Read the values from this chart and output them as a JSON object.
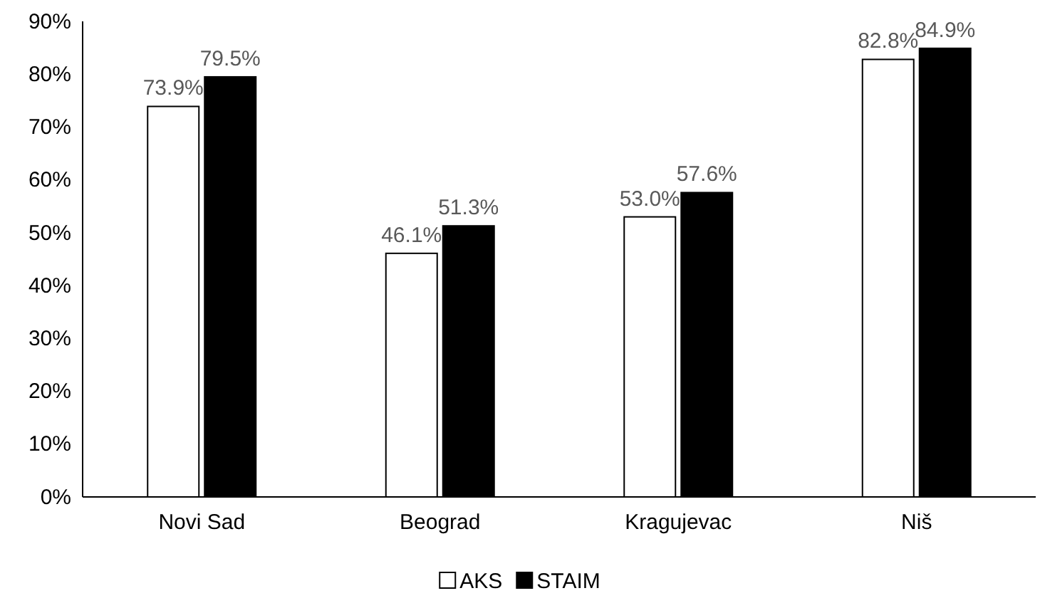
{
  "chart_data": {
    "type": "bar",
    "categories": [
      "Novi Sad",
      "Beograd",
      "Kragujevac",
      "Niš"
    ],
    "series": [
      {
        "name": "AKS",
        "color": "#ffffff",
        "values": [
          73.9,
          46.1,
          53.0,
          82.8
        ],
        "value_labels": [
          "73.9%",
          "46.1%",
          "53.0%",
          "82.8%"
        ]
      },
      {
        "name": "STAIM",
        "color": "#000000",
        "values": [
          79.5,
          51.3,
          57.6,
          84.9
        ],
        "value_labels": [
          "79.5%",
          "51.3%",
          "57.6%",
          "84.9%"
        ]
      }
    ],
    "ylim": [
      0,
      90
    ],
    "yticks": [
      {
        "value": 0,
        "label": "0%"
      },
      {
        "value": 10,
        "label": "10%"
      },
      {
        "value": 20,
        "label": "20%"
      },
      {
        "value": 30,
        "label": "30%"
      },
      {
        "value": 40,
        "label": "40%"
      },
      {
        "value": 50,
        "label": "50%"
      },
      {
        "value": 60,
        "label": "60%"
      },
      {
        "value": 70,
        "label": "70%"
      },
      {
        "value": 80,
        "label": "80%"
      },
      {
        "value": 90,
        "label": "90%"
      }
    ],
    "grid": false,
    "legend": "bottom"
  }
}
